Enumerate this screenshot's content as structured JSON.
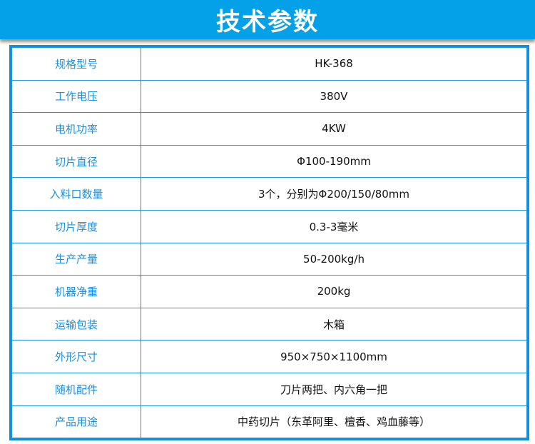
{
  "title": "技术参数",
  "colors": {
    "banner": "#05a1e8",
    "border": "#1c95e3",
    "label": "#1a8fe0"
  },
  "rows": [
    {
      "label": "规格型号",
      "value": "HK-368"
    },
    {
      "label": "工作电压",
      "value": "380V"
    },
    {
      "label": "电机功率",
      "value": "4KW"
    },
    {
      "label": "切片直径",
      "value": "Φ100-190mm"
    },
    {
      "label": "入料口数量",
      "value": "3个，分别为Φ200/150/80mm"
    },
    {
      "label": "切片厚度",
      "value": "0.3-3毫米"
    },
    {
      "label": "生产产量",
      "value": "50-200kg/h"
    },
    {
      "label": "机器净重",
      "value": "200kg"
    },
    {
      "label": "运输包装",
      "value": "木箱"
    },
    {
      "label": "外形尺寸",
      "value": "950×750×1100mm"
    },
    {
      "label": "随机配件",
      "value": "刀片两把、内六角一把"
    },
    {
      "label": "产品用途",
      "value": "中药切片（东革阿里、檀香、鸡血藤等）"
    }
  ]
}
